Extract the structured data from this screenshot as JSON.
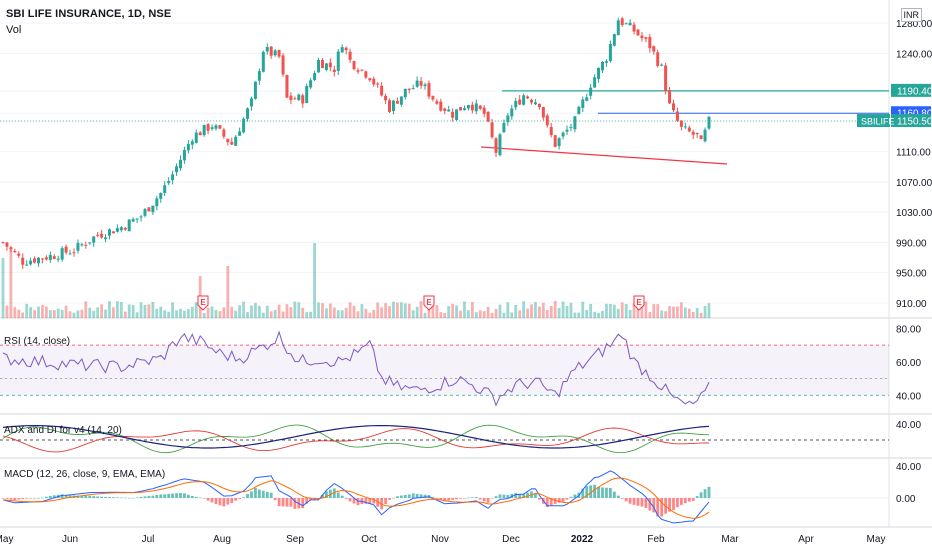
{
  "header": {
    "title": "SBI LIFE INSURANCE, 1D, NSE",
    "volume_label": "Vol",
    "currency": "INR"
  },
  "indicators": {
    "rsi": "RSI (14, close)",
    "adx": "ADX and DI for v4 (14, 20)",
    "macd": "MACD (12, 26, close, 9, EMA, EMA)"
  },
  "colors": {
    "up": "#26a69a",
    "down": "#ef5350",
    "teal_line": "#26a69a",
    "blue_line": "#2962ff",
    "red_line": "#f23645",
    "rsi_line": "#7e57c2",
    "adx": "#1a237e",
    "di_plus": "#43a047",
    "di_minus": "#e53935",
    "macd": "#2962ff",
    "signal": "#ff6d00"
  },
  "chart_data": [
    {
      "type": "candlestick",
      "name": "price",
      "ylim": [
        890,
        1300
      ],
      "y_ticks": [
        "1280.00",
        "1240.00",
        "1190.40",
        "1160.80",
        "1150.50",
        "1110.00",
        "1070.00",
        "1030.00",
        "990.00",
        "950.00",
        "910.00"
      ],
      "x_ticks": [
        "May",
        "Jun",
        "Jul",
        "Aug",
        "Sep",
        "Oct",
        "Nov",
        "Dec",
        "2022",
        "Feb",
        "Mar",
        "Apr",
        "May"
      ],
      "levels": [
        {
          "label": "1190.40",
          "value": 1190.4,
          "color": "#26a69a"
        },
        {
          "label": "1160.80",
          "value": 1160.8,
          "color": "#2962ff"
        },
        {
          "label": "SBILIFE",
          "price_label": "1150.50",
          "value": 1150.5,
          "color": "#26a69a"
        }
      ],
      "trendline": {
        "from": [
          1101,
          "Nov-end"
        ],
        "to": [
          1084,
          "Feb-end"
        ]
      },
      "earnings_markers": [
        "E",
        "E",
        "E"
      ],
      "anchors": [
        [
          0,
          990
        ],
        [
          5,
          965
        ],
        [
          12,
          972
        ],
        [
          18,
          980
        ],
        [
          24,
          1000
        ],
        [
          30,
          1010
        ],
        [
          35,
          1025
        ],
        [
          40,
          1055
        ],
        [
          43,
          1080
        ],
        [
          48,
          1130
        ],
        [
          53,
          1145
        ],
        [
          58,
          1120
        ],
        [
          63,
          1175
        ],
        [
          66,
          1245
        ],
        [
          70,
          1235
        ],
        [
          72,
          1180
        ],
        [
          76,
          1180
        ],
        [
          80,
          1230
        ],
        [
          84,
          1220
        ],
        [
          86,
          1255
        ],
        [
          88,
          1230
        ],
        [
          93,
          1210
        ],
        [
          98,
          1168
        ],
        [
          102,
          1190
        ],
        [
          106,
          1200
        ],
        [
          110,
          1175
        ],
        [
          114,
          1160
        ],
        [
          118,
          1175
        ],
        [
          122,
          1160
        ],
        [
          125,
          1110
        ],
        [
          128,
          1160
        ],
        [
          132,
          1185
        ],
        [
          136,
          1175
        ],
        [
          138,
          1140
        ],
        [
          140,
          1120
        ],
        [
          145,
          1150
        ],
        [
          149,
          1200
        ],
        [
          153,
          1235
        ],
        [
          156,
          1285
        ],
        [
          160,
          1270
        ],
        [
          164,
          1250
        ],
        [
          167,
          1220
        ],
        [
          169,
          1170
        ],
        [
          172,
          1140
        ],
        [
          176,
          1130
        ],
        [
          177,
          1120
        ],
        [
          179,
          1150
        ]
      ]
    },
    {
      "type": "bar",
      "name": "volume",
      "note": "daily volume bars, colored by candle direction"
    },
    {
      "type": "line",
      "name": "RSI",
      "ylim": [
        30,
        85
      ],
      "y_ticks": [
        "80.00",
        "60.00",
        "40.00"
      ],
      "bands": [
        70,
        50,
        40
      ],
      "anchors": [
        [
          0,
          62
        ],
        [
          10,
          60
        ],
        [
          20,
          58
        ],
        [
          30,
          57
        ],
        [
          40,
          62
        ],
        [
          45,
          75
        ],
        [
          50,
          72
        ],
        [
          55,
          65
        ],
        [
          60,
          62
        ],
        [
          65,
          68
        ],
        [
          70,
          75
        ],
        [
          75,
          60
        ],
        [
          80,
          62
        ],
        [
          85,
          60
        ],
        [
          90,
          65
        ],
        [
          93,
          70
        ],
        [
          96,
          50
        ],
        [
          100,
          45
        ],
        [
          105,
          43
        ],
        [
          110,
          46
        ],
        [
          115,
          50
        ],
        [
          120,
          45
        ],
        [
          125,
          38
        ],
        [
          130,
          46
        ],
        [
          135,
          48
        ],
        [
          140,
          40
        ],
        [
          145,
          55
        ],
        [
          150,
          63
        ],
        [
          155,
          72
        ],
        [
          157,
          77
        ],
        [
          160,
          60
        ],
        [
          165,
          50
        ],
        [
          170,
          38
        ],
        [
          174,
          33
        ],
        [
          177,
          38
        ],
        [
          179,
          44
        ]
      ]
    },
    {
      "type": "line",
      "name": "ADX",
      "ylim": [
        0,
        50
      ],
      "y_ticks": [
        "40.00"
      ],
      "level": 20
    },
    {
      "type": "line",
      "name": "MACD",
      "y_ticks": [
        "40.00",
        "0.00"
      ]
    }
  ]
}
